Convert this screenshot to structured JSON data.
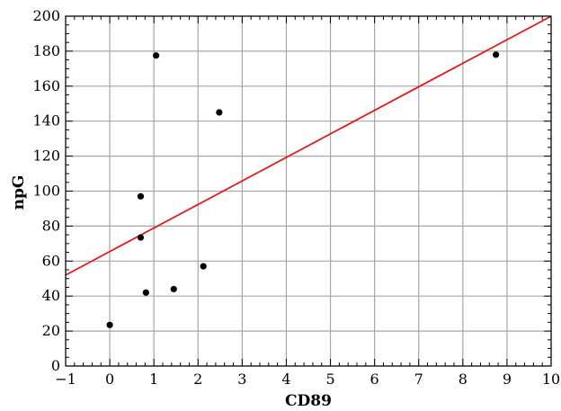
{
  "chart_data": {
    "type": "scatter",
    "title": "",
    "xlabel": "CD89",
    "ylabel": "npG",
    "xlim": [
      -1,
      10
    ],
    "ylim": [
      0,
      200
    ],
    "xticks": [
      -1,
      0,
      1,
      2,
      3,
      4,
      5,
      6,
      7,
      8,
      9,
      10
    ],
    "yticks": [
      0,
      20,
      40,
      60,
      80,
      100,
      120,
      140,
      160,
      180,
      200
    ],
    "xtick_labels": [
      "−1",
      "0",
      "1",
      "2",
      "3",
      "4",
      "5",
      "6",
      "7",
      "8",
      "9",
      "10"
    ],
    "ytick_labels": [
      "0",
      "20",
      "40",
      "60",
      "80",
      "100",
      "120",
      "140",
      "160",
      "180",
      "200"
    ],
    "grid": true,
    "legend": "none",
    "series": [
      {
        "kind": "points",
        "color": "#000000",
        "x": [
          0.0,
          0.7,
          0.7,
          0.82,
          1.05,
          1.45,
          2.12,
          2.48,
          8.75
        ],
        "y": [
          23.5,
          97.0,
          73.5,
          42.0,
          177.5,
          44.0,
          57.0,
          145.0,
          178.0
        ]
      },
      {
        "kind": "fit-line",
        "color": "#e31a1c",
        "x": [
          -1,
          10
        ],
        "y": [
          52,
          200
        ]
      }
    ]
  }
}
